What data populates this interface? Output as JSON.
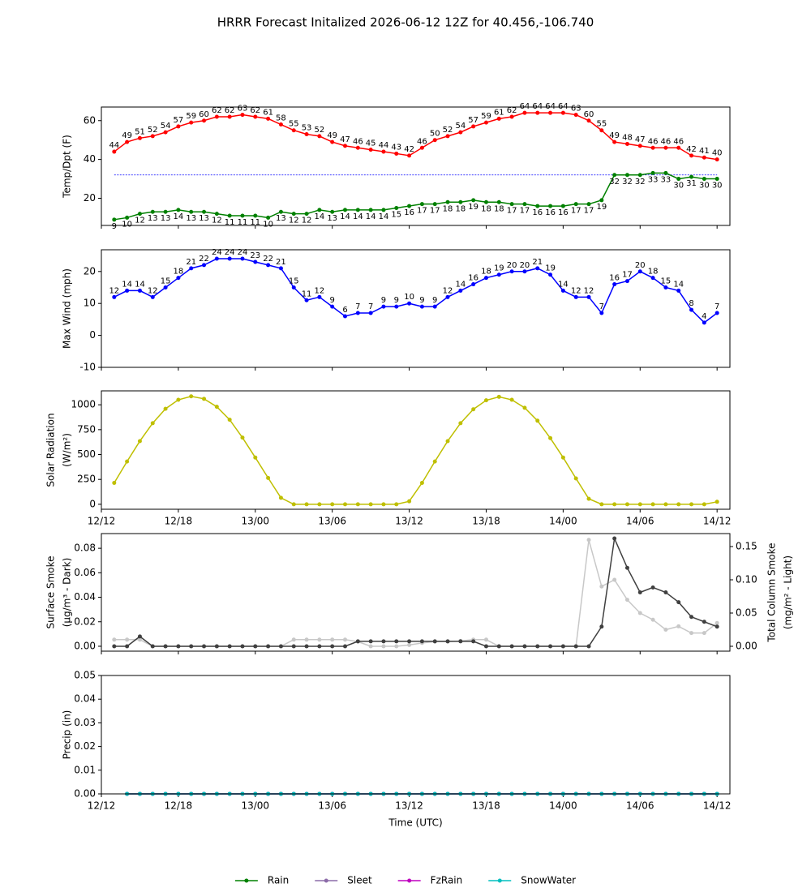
{
  "title": "HRRR Forecast Initalized 2026-06-12 12Z for 40.456,-106.740",
  "chart_data": [
    {
      "type": "line",
      "ylabel": [
        "Temp/Dpt (F)"
      ],
      "x": [
        1,
        2,
        3,
        4,
        5,
        6,
        7,
        8,
        9,
        10,
        11,
        12,
        13,
        14,
        15,
        16,
        17,
        18,
        19,
        20,
        21,
        22,
        23,
        24,
        25,
        26,
        27,
        28,
        29,
        30,
        31,
        32,
        33,
        34,
        35,
        36,
        37,
        38,
        39,
        40,
        41,
        42,
        43,
        44,
        45,
        46,
        47,
        48
      ],
      "xlim": [
        0,
        49
      ],
      "xticks": [
        0,
        6,
        12,
        18,
        24,
        30,
        36,
        42,
        48
      ],
      "ylim": [
        6,
        67
      ],
      "yticks": [
        20,
        40,
        60
      ],
      "ref_line": {
        "value": 32,
        "color": "#0000ff"
      },
      "series": [
        {
          "color": "#ff0000",
          "label_position": "above",
          "values": [
            44,
            49,
            51,
            52,
            54,
            57,
            59,
            60,
            62,
            62,
            63,
            62,
            61,
            58,
            55,
            53,
            52,
            49,
            47,
            46,
            45,
            44,
            43,
            42,
            46,
            50,
            52,
            54,
            57,
            59,
            61,
            62,
            64,
            64,
            64,
            64,
            63,
            60,
            55,
            49,
            48,
            47,
            46,
            46,
            46,
            42,
            41,
            40
          ]
        },
        {
          "color": "#008000",
          "label_position": "below",
          "values": [
            9,
            10,
            12,
            13,
            13,
            14,
            13,
            13,
            12,
            11,
            11,
            11,
            10,
            13,
            12,
            12,
            14,
            13,
            14,
            14,
            14,
            14,
            15,
            16,
            17,
            17,
            18,
            18,
            19,
            18,
            18,
            17,
            17,
            16,
            16,
            16,
            17,
            17,
            19,
            32,
            32,
            32,
            33,
            33,
            30,
            31,
            30,
            30
          ]
        }
      ]
    },
    {
      "type": "line",
      "ylabel": [
        "Max Wind (mph)"
      ],
      "x": [
        1,
        2,
        3,
        4,
        5,
        6,
        7,
        8,
        9,
        10,
        11,
        12,
        13,
        14,
        15,
        16,
        17,
        18,
        19,
        20,
        21,
        22,
        23,
        24,
        25,
        26,
        27,
        28,
        29,
        30,
        31,
        32,
        33,
        34,
        35,
        36,
        37,
        38,
        39,
        40,
        41,
        42,
        43,
        44,
        45,
        46,
        47,
        48
      ],
      "xlim": [
        0,
        49
      ],
      "xticks": [
        0,
        6,
        12,
        18,
        24,
        30,
        36,
        42,
        48
      ],
      "ylim": [
        -10,
        26.8
      ],
      "yticks": [
        -10,
        0,
        10,
        20
      ],
      "series": [
        {
          "color": "#0000ff",
          "label_position": "above",
          "values": [
            12,
            14,
            14,
            12,
            15,
            18,
            21,
            22,
            24,
            24,
            24,
            23,
            22,
            21,
            15,
            11,
            12,
            9,
            6,
            7,
            7,
            9,
            9,
            10,
            9,
            9,
            12,
            14,
            16,
            18,
            19,
            20,
            20,
            21,
            19,
            14,
            12,
            12,
            7,
            16,
            17,
            20,
            18,
            15,
            14,
            8,
            4,
            7
          ]
        }
      ]
    },
    {
      "type": "line",
      "ylabel": [
        "Solar Radiation",
        "(W/m²)"
      ],
      "x": [
        1,
        2,
        3,
        4,
        5,
        6,
        7,
        8,
        9,
        10,
        11,
        12,
        13,
        14,
        15,
        16,
        17,
        18,
        19,
        20,
        21,
        22,
        23,
        24,
        25,
        26,
        27,
        28,
        29,
        30,
        31,
        32,
        33,
        34,
        35,
        36,
        37,
        38,
        39,
        40,
        41,
        42,
        43,
        44,
        45,
        46,
        47,
        48
      ],
      "xlim": [
        0,
        49
      ],
      "xticks": [
        {
          "value": 0,
          "label": "12/12"
        },
        {
          "value": 6,
          "label": "12/18"
        },
        {
          "value": 12,
          "label": "13/00"
        },
        {
          "value": 18,
          "label": "13/06"
        },
        {
          "value": 24,
          "label": "13/12"
        },
        {
          "value": 30,
          "label": "13/18"
        },
        {
          "value": 36,
          "label": "14/00"
        },
        {
          "value": 42,
          "label": "14/06"
        },
        {
          "value": 48,
          "label": "14/12"
        }
      ],
      "ylim": [
        -50,
        1140
      ],
      "yticks": [
        0,
        250,
        500,
        750,
        1000
      ],
      "series": [
        {
          "color": "#bfbf00",
          "values": [
            215,
            430,
            635,
            815,
            960,
            1050,
            1085,
            1060,
            980,
            850,
            670,
            470,
            265,
            65,
            0,
            0,
            0,
            0,
            0,
            0,
            0,
            0,
            0,
            30,
            215,
            430,
            635,
            815,
            955,
            1045,
            1080,
            1050,
            970,
            840,
            665,
            470,
            260,
            55,
            0,
            0,
            0,
            0,
            0,
            0,
            0,
            0,
            0,
            25
          ]
        }
      ]
    },
    {
      "type": "line",
      "ylabel": [
        "Surface Smoke",
        "(μg/m³ - Dark)"
      ],
      "y2label": [
        "Total Column Smoke",
        "(mg/m² - Light)"
      ],
      "x": [
        1,
        2,
        3,
        4,
        5,
        6,
        7,
        8,
        9,
        10,
        11,
        12,
        13,
        14,
        15,
        16,
        17,
        18,
        19,
        20,
        21,
        22,
        23,
        24,
        25,
        26,
        27,
        28,
        29,
        30,
        31,
        32,
        33,
        34,
        35,
        36,
        37,
        38,
        39,
        40,
        41,
        42,
        43,
        44,
        45,
        46,
        47,
        48
      ],
      "xlim": [
        0,
        49
      ],
      "xticks": [
        0,
        6,
        12,
        18,
        24,
        30,
        36,
        42,
        48
      ],
      "ylim": [
        -0.004,
        0.092
      ],
      "yticks": [
        {
          "value": 0,
          "label": "0.00"
        },
        {
          "value": 0.02,
          "label": "0.02"
        },
        {
          "value": 0.04,
          "label": "0.04"
        },
        {
          "value": 0.06,
          "label": "0.06"
        },
        {
          "value": 0.08,
          "label": "0.08"
        }
      ],
      "y2lim": [
        -0.0073,
        0.1695
      ],
      "y2ticks": [
        {
          "value": 0,
          "label": "0.00"
        },
        {
          "value": 0.05,
          "label": "0.05"
        },
        {
          "value": 0.1,
          "label": "0.10"
        },
        {
          "value": 0.15,
          "label": "0.15"
        }
      ],
      "series": [
        {
          "color": "#c8c8c8",
          "axis": "y2",
          "values": [
            0.01,
            0.01,
            0.01,
            0,
            0,
            0,
            0,
            0,
            0,
            0,
            0,
            0,
            0,
            0,
            0.01,
            0.01,
            0.01,
            0.01,
            0.01,
            0.007,
            0,
            0,
            0,
            0.002,
            0.005,
            0.007,
            0.007,
            0.008,
            0.01,
            0.01,
            0,
            0,
            0,
            0,
            0,
            0,
            0,
            0.16,
            0.09,
            0.1,
            0.07,
            0.05,
            0.04,
            0.025,
            0.03,
            0.02,
            0.02,
            0.035
          ]
        },
        {
          "color": "#404040",
          "values": [
            0,
            0,
            0.008,
            0,
            0,
            0,
            0,
            0,
            0,
            0,
            0,
            0,
            0,
            0,
            0,
            0,
            0,
            0,
            0,
            0.004,
            0.004,
            0.004,
            0.004,
            0.004,
            0.004,
            0.004,
            0.004,
            0.004,
            0.004,
            0,
            0,
            0,
            0,
            0,
            0,
            0,
            0,
            0,
            0.016,
            0.088,
            0.064,
            0.044,
            0.048,
            0.044,
            0.036,
            0.024,
            0.02,
            0.016
          ]
        }
      ]
    },
    {
      "type": "line",
      "ylabel": [
        "Precip (in)"
      ],
      "xlabel": "Time (UTC)",
      "legend": "lower center",
      "x": [
        1,
        2,
        3,
        4,
        5,
        6,
        7,
        8,
        9,
        10,
        11,
        12,
        13,
        14,
        15,
        16,
        17,
        18,
        19,
        20,
        21,
        22,
        23,
        24,
        25,
        26,
        27,
        28,
        29,
        30,
        31,
        32,
        33,
        34,
        35,
        36,
        37,
        38,
        39,
        40,
        41,
        42,
        43,
        44,
        45,
        46,
        47,
        48
      ],
      "xlim": [
        0,
        49
      ],
      "xticks": [
        {
          "value": 0,
          "label": "12/12"
        },
        {
          "value": 6,
          "label": "12/18"
        },
        {
          "value": 12,
          "label": "13/00"
        },
        {
          "value": 18,
          "label": "13/06"
        },
        {
          "value": 24,
          "label": "13/12"
        },
        {
          "value": 30,
          "label": "13/18"
        },
        {
          "value": 36,
          "label": "14/00"
        },
        {
          "value": 42,
          "label": "14/06"
        },
        {
          "value": 48,
          "label": "14/12"
        }
      ],
      "ylim": [
        0,
        0.05
      ],
      "yticks": [
        {
          "value": 0,
          "label": "0.00"
        },
        {
          "value": 0.01,
          "label": "0.01"
        },
        {
          "value": 0.02,
          "label": "0.02"
        },
        {
          "value": 0.03,
          "label": "0.03"
        },
        {
          "value": 0.04,
          "label": "0.04"
        },
        {
          "value": 0.05,
          "label": "0.05"
        }
      ],
      "series": [
        {
          "name": "Rain",
          "color": "#008000",
          "values": [
            null,
            0,
            0,
            0,
            0,
            0,
            0,
            0,
            0,
            0,
            0,
            0,
            0,
            0,
            0,
            0,
            0,
            0,
            0,
            0,
            0,
            0,
            0,
            0,
            0,
            0,
            0,
            0,
            0,
            0,
            0,
            0,
            0,
            0,
            0,
            0,
            0,
            0,
            0,
            0,
            0,
            0,
            0,
            0,
            0,
            0,
            0,
            0
          ]
        },
        {
          "name": "Sleet",
          "color": "#8c6ba8",
          "values": [
            null,
            0,
            0,
            0,
            0,
            0,
            0,
            0,
            0,
            0,
            0,
            0,
            0,
            0,
            0,
            0,
            0,
            0,
            0,
            0,
            0,
            0,
            0,
            0,
            0,
            0,
            0,
            0,
            0,
            0,
            0,
            0,
            0,
            0,
            0,
            0,
            0,
            0,
            0,
            0,
            0,
            0,
            0,
            0,
            0,
            0,
            0,
            0
          ]
        },
        {
          "name": "FzRain",
          "color": "#bf00bf",
          "values": [
            null,
            0,
            0,
            0,
            0,
            0,
            0,
            0,
            0,
            0,
            0,
            0,
            0,
            0,
            0,
            0,
            0,
            0,
            0,
            0,
            0,
            0,
            0,
            0,
            0,
            0,
            0,
            0,
            0,
            0,
            0,
            0,
            0,
            0,
            0,
            0,
            0,
            0,
            0,
            0,
            0,
            0,
            0,
            0,
            0,
            0,
            0,
            0
          ]
        },
        {
          "name": "SnowWater",
          "color": "#00bfbf",
          "values": [
            null,
            0,
            0,
            0,
            0,
            0,
            0,
            0,
            0,
            0,
            0,
            0,
            0,
            0,
            0,
            0,
            0,
            0,
            0,
            0,
            0,
            0,
            0,
            0,
            0,
            0,
            0,
            0,
            0,
            0,
            0,
            0,
            0,
            0,
            0,
            0,
            0,
            0,
            0,
            0,
            0,
            0,
            0,
            0,
            0,
            0,
            0,
            0
          ]
        }
      ]
    }
  ]
}
